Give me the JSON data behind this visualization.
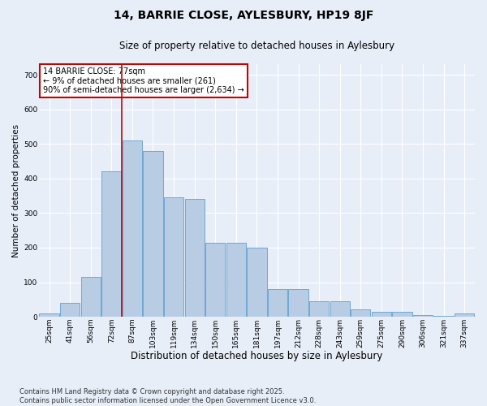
{
  "title": "14, BARRIE CLOSE, AYLESBURY, HP19 8JF",
  "subtitle": "Size of property relative to detached houses in Aylesbury",
  "xlabel": "Distribution of detached houses by size in Aylesbury",
  "ylabel": "Number of detached properties",
  "categories": [
    "25sqm",
    "41sqm",
    "56sqm",
    "72sqm",
    "87sqm",
    "103sqm",
    "119sqm",
    "134sqm",
    "150sqm",
    "165sqm",
    "181sqm",
    "197sqm",
    "212sqm",
    "228sqm",
    "243sqm",
    "259sqm",
    "275sqm",
    "290sqm",
    "306sqm",
    "321sqm",
    "337sqm"
  ],
  "values": [
    10,
    40,
    115,
    420,
    510,
    480,
    345,
    340,
    215,
    215,
    200,
    80,
    80,
    45,
    45,
    22,
    15,
    15,
    5,
    2,
    10
  ],
  "bar_color": "#b8cce4",
  "bar_edge_color": "#6fa8d6",
  "bg_color": "#e8eef8",
  "grid_color": "#ffffff",
  "vline_color": "#cc0000",
  "vline_x_index": 3.5,
  "annotation_text": "14 BARRIE CLOSE: 77sqm\n← 9% of detached houses are smaller (261)\n90% of semi-detached houses are larger (2,634) →",
  "annotation_box_color": "#cc0000",
  "footer": "Contains HM Land Registry data © Crown copyright and database right 2025.\nContains public sector information licensed under the Open Government Licence v3.0.",
  "ylim": [
    0,
    730
  ],
  "yticks": [
    0,
    100,
    200,
    300,
    400,
    500,
    600,
    700
  ],
  "title_fontsize": 10,
  "subtitle_fontsize": 8.5,
  "ylabel_fontsize": 7.5,
  "xlabel_fontsize": 8.5,
  "tick_fontsize": 6.5,
  "annotation_fontsize": 7,
  "footer_fontsize": 6
}
